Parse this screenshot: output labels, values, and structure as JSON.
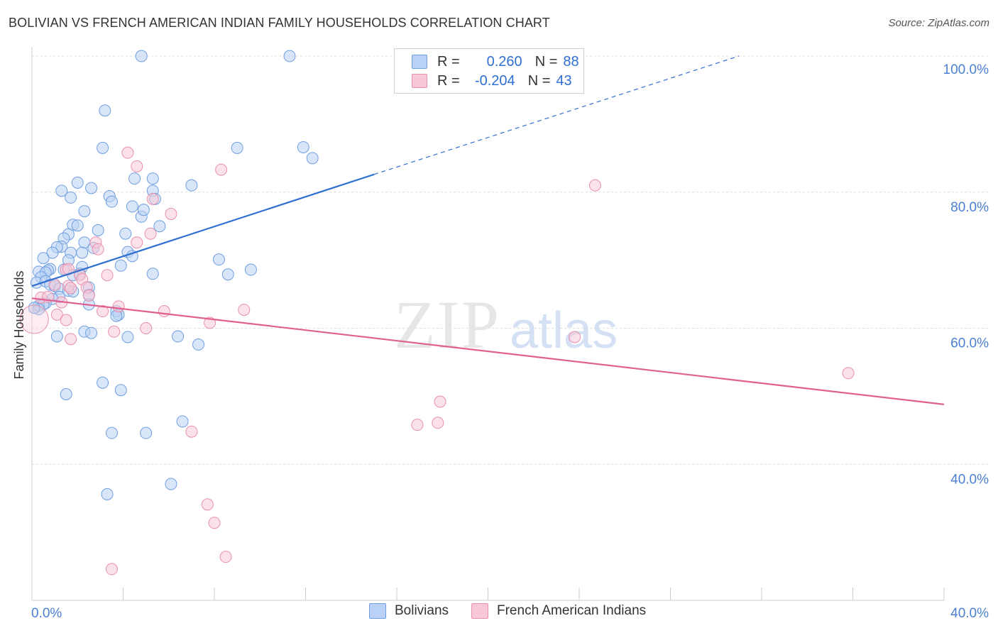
{
  "title": "BOLIVIAN VS FRENCH AMERICAN INDIAN FAMILY HOUSEHOLDS CORRELATION CHART",
  "source": "Source: ZipAtlas.com",
  "watermark": {
    "zip": "ZIP",
    "atlas": "atlas"
  },
  "colors": {
    "blue": "#6f9fe0",
    "blue_fill": "#b9d1f4",
    "blue_line": "#2f6fd1",
    "pink": "#e890ad",
    "pink_fill": "#f8c8d7",
    "pink_line": "#e0608f"
  },
  "legend": {
    "rows": [
      {
        "r_label": "R =",
        "r_value": "0.260",
        "n_label": "N =",
        "n_value": "88"
      },
      {
        "r_label": "R =",
        "r_value": "-0.204",
        "n_label": "N =",
        "n_value": "43"
      }
    ]
  },
  "bottom_legend": {
    "series1": "Bolivians",
    "series2": "French American Indians"
  },
  "chart_data": {
    "type": "scatter",
    "title": "BOLIVIAN VS FRENCH AMERICAN INDIAN FAMILY HOUSEHOLDS CORRELATION CHART",
    "xlabel": "",
    "ylabel": "Family Households",
    "xlim": [
      0,
      40
    ],
    "ylim": [
      20,
      100
    ],
    "x_tick_labels": [
      "0.0%",
      "40.0%"
    ],
    "y_ticks": [
      40,
      60,
      80,
      100
    ],
    "y_tick_labels": [
      "40.0%",
      "60.0%",
      "80.0%",
      "100.0%"
    ],
    "grid": true,
    "series": [
      {
        "name": "Bolivians",
        "R": 0.26,
        "N": 88,
        "trend": {
          "x0": 0,
          "y0": 66.2,
          "x1": 15,
          "y1": 82.6,
          "x1_dashed": 31,
          "y1_dashed": 100
        },
        "points": [
          [
            4.8,
            100
          ],
          [
            11.3,
            100
          ],
          [
            3.2,
            92
          ],
          [
            3.1,
            86.5
          ],
          [
            9.0,
            86.5
          ],
          [
            11.9,
            86.6
          ],
          [
            12.3,
            85
          ],
          [
            2.0,
            81.4
          ],
          [
            1.3,
            80.2
          ],
          [
            2.6,
            80.6
          ],
          [
            4.5,
            82
          ],
          [
            5.3,
            82
          ],
          [
            7.0,
            81
          ],
          [
            5.3,
            80.2
          ],
          [
            1.7,
            79.2
          ],
          [
            3.4,
            79.4
          ],
          [
            3.5,
            78.6
          ],
          [
            5.4,
            79
          ],
          [
            4.4,
            77.9
          ],
          [
            4.8,
            76.4
          ],
          [
            4.9,
            77.4
          ],
          [
            2.3,
            77.2
          ],
          [
            5.6,
            75
          ],
          [
            2.9,
            74.4
          ],
          [
            1.8,
            75.2
          ],
          [
            2.0,
            75.1
          ],
          [
            4.1,
            73.9
          ],
          [
            1.6,
            73.8
          ],
          [
            1.4,
            73.2
          ],
          [
            2.3,
            72.6
          ],
          [
            1.3,
            72
          ],
          [
            1.1,
            71.9
          ],
          [
            2.7,
            71.8
          ],
          [
            1.7,
            71.1
          ],
          [
            0.9,
            71.1
          ],
          [
            4.2,
            71.2
          ],
          [
            2.2,
            71.1
          ],
          [
            4.4,
            70.6
          ],
          [
            0.5,
            70.3
          ],
          [
            1.6,
            70
          ],
          [
            3.9,
            69.2
          ],
          [
            8.2,
            70.1
          ],
          [
            2.2,
            69
          ],
          [
            0.8,
            68.7
          ],
          [
            0.7,
            68.5
          ],
          [
            0.3,
            68.3
          ],
          [
            0.6,
            68.2
          ],
          [
            1.4,
            68.6
          ],
          [
            2.1,
            68
          ],
          [
            5.3,
            68
          ],
          [
            1.8,
            67.8
          ],
          [
            0.4,
            67.5
          ],
          [
            8.6,
            67.9
          ],
          [
            9.6,
            68.6
          ],
          [
            0.2,
            66.7
          ],
          [
            0.6,
            66.9
          ],
          [
            0.8,
            66.4
          ],
          [
            1.0,
            66.2
          ],
          [
            1.2,
            65.8
          ],
          [
            1.6,
            65.5
          ],
          [
            1.8,
            65.4
          ],
          [
            2.5,
            66
          ],
          [
            2.5,
            64.9
          ],
          [
            1.2,
            64.6
          ],
          [
            0.9,
            64.3
          ],
          [
            0.6,
            63.7
          ],
          [
            0.3,
            63.3
          ],
          [
            0.5,
            63.5
          ],
          [
            2.5,
            63.5
          ],
          [
            3.7,
            62.5
          ],
          [
            3.8,
            62
          ],
          [
            3.7,
            61.8
          ],
          [
            2.3,
            59.5
          ],
          [
            1.1,
            58.8
          ],
          [
            2.6,
            59.3
          ],
          [
            4.2,
            58.7
          ],
          [
            6.4,
            58.8
          ],
          [
            7.3,
            57.6
          ],
          [
            3.1,
            52
          ],
          [
            3.9,
            50.9
          ],
          [
            1.5,
            50.3
          ],
          [
            6.6,
            46.3
          ],
          [
            3.5,
            44.6
          ],
          [
            5.0,
            44.6
          ],
          [
            3.3,
            35.6
          ],
          [
            6.1,
            37.1
          ],
          [
            0.3,
            62.8
          ],
          [
            0.1,
            63
          ]
        ]
      },
      {
        "name": "French American Indians",
        "R": -0.204,
        "N": 43,
        "trend": {
          "x0": 0,
          "y0": 64.4,
          "x1": 40,
          "y1": 48.8
        },
        "points": [
          [
            4.2,
            85.8
          ],
          [
            4.6,
            83.8
          ],
          [
            8.3,
            83.3
          ],
          [
            24.7,
            81
          ],
          [
            5.3,
            79
          ],
          [
            6.1,
            76.8
          ],
          [
            5.2,
            73.9
          ],
          [
            4.6,
            72.6
          ],
          [
            2.8,
            72.6
          ],
          [
            2.9,
            71.6
          ],
          [
            1.5,
            68.6
          ],
          [
            1.6,
            68.7
          ],
          [
            2.1,
            67.8
          ],
          [
            2.2,
            67.2
          ],
          [
            3.3,
            67.8
          ],
          [
            1.0,
            66.4
          ],
          [
            1.6,
            66.2
          ],
          [
            1.7,
            65.9
          ],
          [
            2.4,
            66
          ],
          [
            2.5,
            64.8
          ],
          [
            0.4,
            64.5
          ],
          [
            0.7,
            64.6
          ],
          [
            1.3,
            63.8
          ],
          [
            3.8,
            63.2
          ],
          [
            5.8,
            62.5
          ],
          [
            9.3,
            62.7
          ],
          [
            3.1,
            62.5
          ],
          [
            1.1,
            62
          ],
          [
            1.5,
            61.2
          ],
          [
            7.8,
            60.8
          ],
          [
            5.0,
            60
          ],
          [
            3.6,
            59.5
          ],
          [
            1.7,
            58.4
          ],
          [
            23.8,
            58.7
          ],
          [
            35.8,
            53.4
          ],
          [
            17.9,
            49.2
          ],
          [
            16.9,
            45.8
          ],
          [
            17.8,
            46.1
          ],
          [
            7.0,
            44.8
          ],
          [
            7.7,
            34.1
          ],
          [
            8.0,
            31.4
          ],
          [
            8.5,
            26.4
          ],
          [
            3.5,
            24.6
          ]
        ]
      }
    ]
  }
}
